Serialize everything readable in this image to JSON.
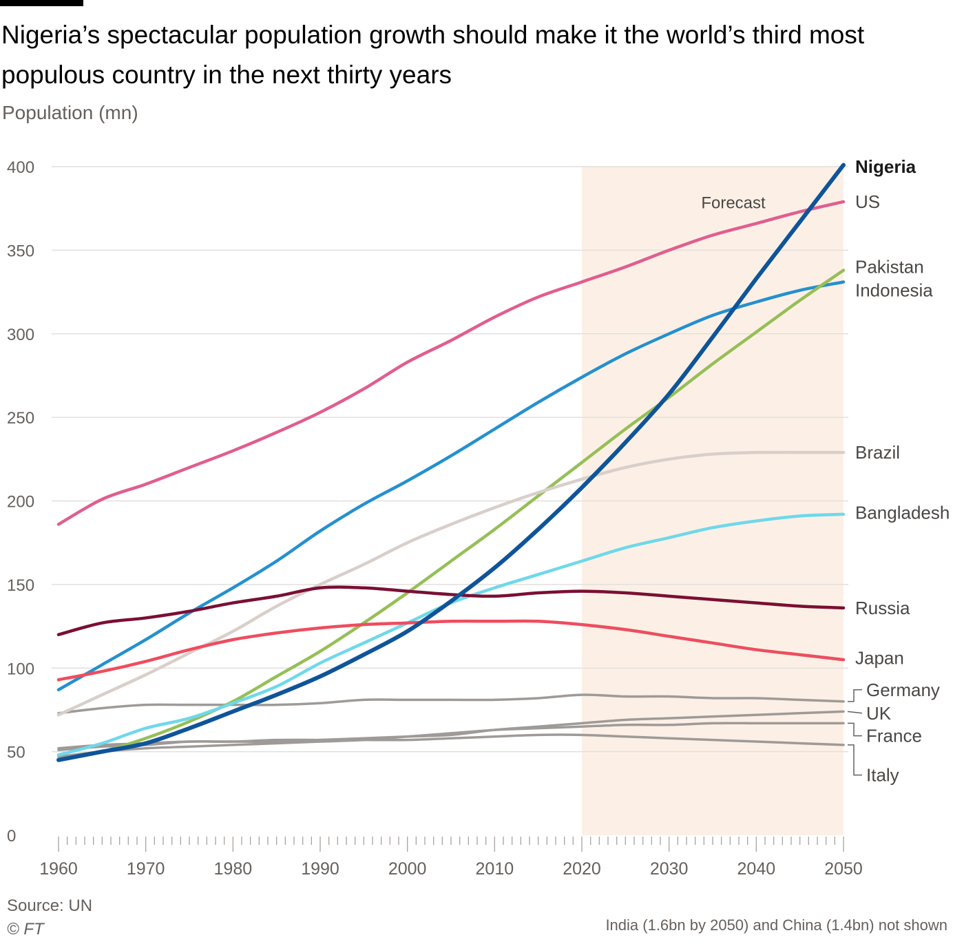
{
  "header": {
    "title": "Nigeria’s spectacular population growth should make it the world’s third most populous country in the next thirty years",
    "subtitle": "Population (mn)"
  },
  "footer": {
    "source": "Source: UN",
    "copyright": "© FT",
    "note": "India (1.6bn by 2050) and China (1.4bn) not shown"
  },
  "colors": {
    "forecast_band": "#fcf0e6",
    "grid": "#e3dfdc",
    "axis_text": "#66605c",
    "label_text": "#4a4745"
  },
  "chart_data": {
    "type": "line",
    "title": "Nigeria’s spectacular population growth should make it the world’s third most populous country in the next thirty years",
    "ylabel": "Population (mn)",
    "xlabel": "",
    "xlim": [
      1960,
      2050
    ],
    "ylim": [
      0,
      400
    ],
    "x_ticks": [
      1960,
      1970,
      1980,
      1990,
      2000,
      2010,
      2020,
      2030,
      2040,
      2050
    ],
    "y_ticks": [
      0,
      50,
      100,
      150,
      200,
      250,
      300,
      350,
      400
    ],
    "grid": true,
    "forecast": {
      "start": 2020,
      "end": 2050,
      "label": "Forecast"
    },
    "x": [
      1960,
      1965,
      1970,
      1975,
      1980,
      1985,
      1990,
      1995,
      2000,
      2005,
      2010,
      2015,
      2020,
      2025,
      2030,
      2035,
      2040,
      2045,
      2050
    ],
    "series": [
      {
        "name": "US",
        "color": "#e05e8f",
        "width": 4.5,
        "bold": false,
        "values": [
          186,
          201,
          210,
          220,
          230,
          241,
          253,
          267,
          283,
          296,
          310,
          322,
          331,
          340,
          350,
          359,
          366,
          373,
          379
        ]
      },
      {
        "name": "Indonesia",
        "color": "#2490d0",
        "width": 4.5,
        "bold": false,
        "values": [
          87,
          102,
          117,
          133,
          148,
          164,
          182,
          198,
          212,
          227,
          243,
          259,
          274,
          288,
          300,
          311,
          319,
          326,
          331
        ]
      },
      {
        "name": "Pakistan",
        "color": "#96bf57",
        "width": 4.5,
        "bold": false,
        "values": [
          45,
          50,
          58,
          68,
          80,
          95,
          110,
          127,
          145,
          164,
          183,
          203,
          223,
          243,
          262,
          282,
          301,
          320,
          338
        ]
      },
      {
        "name": "Nigeria",
        "color": "#0f5499",
        "width": 6,
        "bold": true,
        "values": [
          45,
          50,
          55,
          64,
          74,
          84,
          95,
          108,
          122,
          140,
          160,
          183,
          208,
          235,
          264,
          298,
          333,
          367,
          401
        ]
      },
      {
        "name": "Brazil",
        "color": "#d9cfca",
        "width": 4.5,
        "bold": false,
        "values": [
          72,
          84,
          96,
          109,
          122,
          137,
          150,
          162,
          175,
          186,
          196,
          205,
          213,
          220,
          225,
          228,
          229,
          229,
          229
        ]
      },
      {
        "name": "Bangladesh",
        "color": "#6fd8ea",
        "width": 4.5,
        "bold": false,
        "values": [
          48,
          55,
          64,
          70,
          79,
          89,
          103,
          115,
          127,
          139,
          148,
          156,
          164,
          172,
          178,
          184,
          188,
          191,
          192
        ]
      },
      {
        "name": "Russia",
        "color": "#7a0f33",
        "width": 4.5,
        "bold": false,
        "values": [
          120,
          127,
          130,
          134,
          139,
          143,
          148,
          148,
          146,
          144,
          143,
          145,
          146,
          145,
          143,
          141,
          139,
          137,
          136
        ]
      },
      {
        "name": "Japan",
        "color": "#ee4d5f",
        "width": 4.5,
        "bold": false,
        "values": [
          93,
          98,
          104,
          111,
          117,
          121,
          124,
          126,
          127,
          128,
          128,
          128,
          126,
          123,
          119,
          115,
          111,
          108,
          105
        ]
      },
      {
        "name": "Germany",
        "color": "#9e9a97",
        "width": 3.5,
        "bold": false,
        "values": [
          73,
          76,
          78,
          78,
          78,
          78,
          79,
          81,
          81,
          81,
          81,
          82,
          84,
          83,
          83,
          82,
          82,
          81,
          80
        ]
      },
      {
        "name": "UK",
        "color": "#9e9a97",
        "width": 3.5,
        "bold": false,
        "values": [
          52,
          54,
          55,
          56,
          56,
          56,
          57,
          58,
          59,
          60,
          63,
          65,
          67,
          69,
          70,
          71,
          72,
          73,
          74
        ]
      },
      {
        "name": "France",
        "color": "#9e9a97",
        "width": 3.5,
        "bold": false,
        "values": [
          47,
          50,
          52,
          53,
          54,
          55,
          56,
          57,
          59,
          61,
          63,
          64,
          65,
          66,
          66,
          67,
          67,
          67,
          67
        ]
      },
      {
        "name": "Italy",
        "color": "#9e9a97",
        "width": 3.5,
        "bold": false,
        "values": [
          51,
          53,
          54,
          56,
          56,
          57,
          57,
          57,
          57,
          58,
          59,
          60,
          60,
          59,
          58,
          57,
          56,
          55,
          54
        ]
      }
    ],
    "end_labels": [
      {
        "text": "Nigeria",
        "bold": true,
        "y": 400
      },
      {
        "text": "US",
        "bold": false,
        "y": 379
      },
      {
        "text": "Pakistan",
        "bold": false,
        "y": 340
      },
      {
        "text": "Indonesia",
        "bold": false,
        "y": 326
      },
      {
        "text": "Brazil",
        "bold": false,
        "y": 229
      },
      {
        "text": "Bangladesh",
        "bold": false,
        "y": 193
      },
      {
        "text": "Russia",
        "bold": false,
        "y": 136
      },
      {
        "text": "Japan",
        "bold": false,
        "y": 106
      },
      {
        "text": "Germany",
        "bold": false,
        "y": 87
      },
      {
        "text": "UK",
        "bold": false,
        "y": 73
      },
      {
        "text": "France",
        "bold": false,
        "y": 59.5
      },
      {
        "text": "Italy",
        "bold": false,
        "y": 36
      }
    ]
  }
}
